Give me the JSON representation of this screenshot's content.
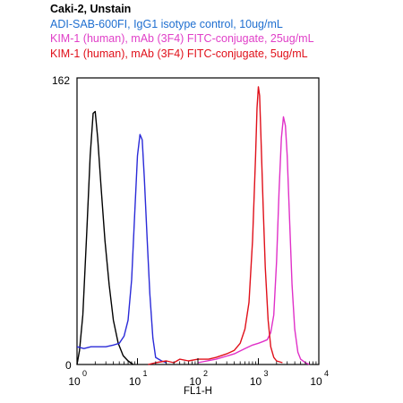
{
  "legend": [
    {
      "text": "Caki-2, Unstain",
      "color": "#000000"
    },
    {
      "text": "ADI-SAB-600FI, IgG1 isotype control, 10ug/mL",
      "color": "#1f6fd0"
    },
    {
      "text": "KIM-1 (human), mAb (3F4) FITC-conjugate, 25ug/mL",
      "color": "#e040c8"
    },
    {
      "text": "KIM-1 (human), mAb (3F4) FITC-conjugate, 5ug/mL",
      "color": "#e0101a"
    }
  ],
  "chart_data": {
    "type": "line",
    "xlabel": "FL1-H",
    "x_scale": "log",
    "xlim": [
      1,
      10000
    ],
    "ylim": [
      0,
      162
    ],
    "x_ticks": [
      {
        "base": "10",
        "exp": "0"
      },
      {
        "base": "10",
        "exp": "1"
      },
      {
        "base": "10",
        "exp": "2"
      },
      {
        "base": "10",
        "exp": "3"
      },
      {
        "base": "10",
        "exp": "4"
      }
    ],
    "y_ticks": [
      "0",
      "162"
    ],
    "series": [
      {
        "name": "Caki-2, Unstain",
        "color": "#000000",
        "points": [
          [
            1.0,
            0
          ],
          [
            1.1,
            8
          ],
          [
            1.25,
            28
          ],
          [
            1.45,
            75
          ],
          [
            1.65,
            118
          ],
          [
            1.85,
            142
          ],
          [
            2.0,
            143
          ],
          [
            2.2,
            128
          ],
          [
            2.5,
            100
          ],
          [
            2.9,
            70
          ],
          [
            3.4,
            45
          ],
          [
            4.0,
            25
          ],
          [
            4.8,
            12
          ],
          [
            5.8,
            5
          ],
          [
            7.0,
            2
          ],
          [
            8.5,
            0
          ]
        ]
      },
      {
        "name": "ADI-SAB-600FI, IgG1 isotype control, 10ug/mL",
        "color": "#2a2ad8",
        "points": [
          [
            1.0,
            10
          ],
          [
            1.3,
            9
          ],
          [
            1.7,
            10
          ],
          [
            2.2,
            10
          ],
          [
            3.0,
            10
          ],
          [
            4.0,
            11
          ],
          [
            5.0,
            12
          ],
          [
            6.0,
            16
          ],
          [
            7.0,
            25
          ],
          [
            8.0,
            48
          ],
          [
            9.0,
            85
          ],
          [
            10.0,
            118
          ],
          [
            11.0,
            130
          ],
          [
            12.0,
            127
          ],
          [
            13.0,
            105
          ],
          [
            14.5,
            70
          ],
          [
            16.0,
            40
          ],
          [
            18.0,
            15
          ],
          [
            20.0,
            4
          ],
          [
            25.0,
            2
          ],
          [
            30.0,
            1
          ]
        ]
      },
      {
        "name": "KIM-1 (human), mAb (3F4) FITC-conjugate, 25ug/mL",
        "color": "#e030c8",
        "points": [
          [
            100,
            1
          ],
          [
            200,
            3
          ],
          [
            400,
            6
          ],
          [
            600,
            9
          ],
          [
            800,
            11
          ],
          [
            1000,
            12
          ],
          [
            1200,
            13
          ],
          [
            1400,
            14
          ],
          [
            1600,
            18
          ],
          [
            1800,
            28
          ],
          [
            2000,
            58
          ],
          [
            2200,
            98
          ],
          [
            2400,
            128
          ],
          [
            2600,
            140
          ],
          [
            2800,
            135
          ],
          [
            3000,
            118
          ],
          [
            3300,
            80
          ],
          [
            3600,
            45
          ],
          [
            4000,
            20
          ],
          [
            4500,
            7
          ],
          [
            5000,
            3
          ],
          [
            6000,
            1
          ],
          [
            7000,
            0
          ]
        ]
      },
      {
        "name": "KIM-1 (human), mAb (3F4) FITC-conjugate, 5ug/mL",
        "color": "#e0101a",
        "points": [
          [
            15,
            0
          ],
          [
            20,
            1
          ],
          [
            30,
            2
          ],
          [
            40,
            1
          ],
          [
            50,
            3
          ],
          [
            70,
            2
          ],
          [
            100,
            3
          ],
          [
            150,
            3
          ],
          [
            200,
            4
          ],
          [
            300,
            6
          ],
          [
            400,
            8
          ],
          [
            500,
            12
          ],
          [
            600,
            20
          ],
          [
            700,
            35
          ],
          [
            800,
            70
          ],
          [
            900,
            118
          ],
          [
            950,
            145
          ],
          [
            1000,
            157
          ],
          [
            1050,
            152
          ],
          [
            1100,
            130
          ],
          [
            1200,
            90
          ],
          [
            1300,
            55
          ],
          [
            1450,
            25
          ],
          [
            1600,
            10
          ],
          [
            1800,
            4
          ],
          [
            2000,
            2
          ],
          [
            2500,
            1
          ]
        ]
      }
    ]
  }
}
